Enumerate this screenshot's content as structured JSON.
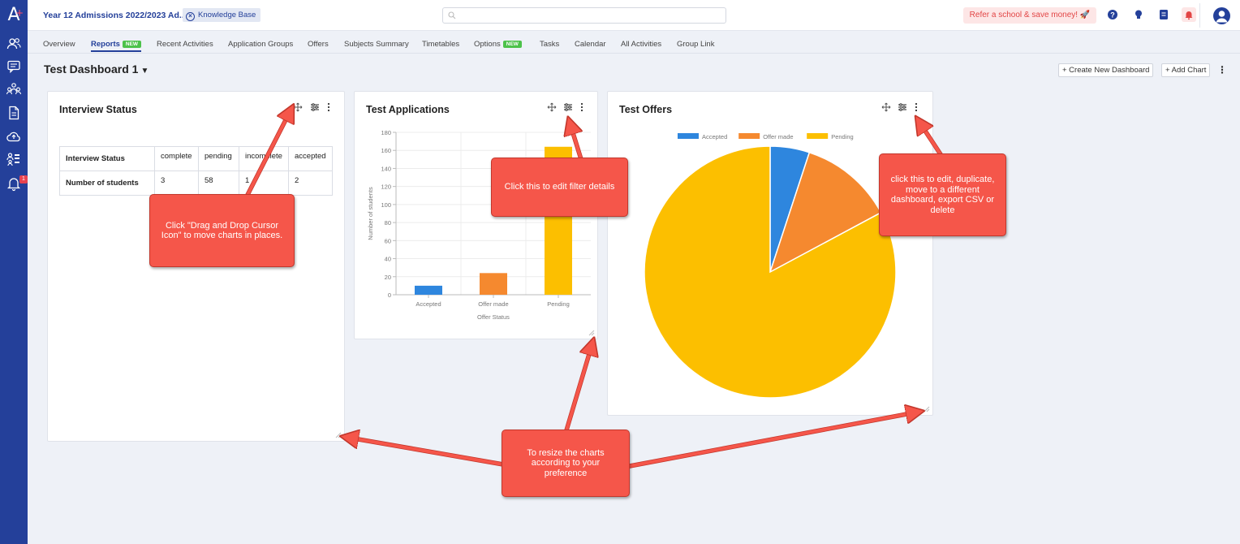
{
  "app": {
    "logo": "A",
    "year_selector": "Year 12 Admissions 2022/2023 Ad...",
    "knowledge_base": "Knowledge Base",
    "refer_label": "Refer a school & save money! 🚀",
    "notification_count": "1"
  },
  "tabs": [
    {
      "label": "Overview"
    },
    {
      "label": "Reports",
      "badge": "NEW"
    },
    {
      "label": "Recent Activities"
    },
    {
      "label": "Application Groups"
    },
    {
      "label": "Offers"
    },
    {
      "label": "Subjects Summary"
    },
    {
      "label": "Timetables"
    },
    {
      "label": "Options",
      "badge": "NEW"
    },
    {
      "label": "Tasks"
    },
    {
      "label": "Calendar"
    },
    {
      "label": "All Activities"
    },
    {
      "label": "Group Link"
    }
  ],
  "active_tab": "Reports",
  "dashboard": {
    "title": "Test Dashboard 1",
    "create_button": "+ Create New Dashboard",
    "add_chart_button": "+ Add Chart"
  },
  "interview_status": {
    "title": "Interview Status",
    "header_row": [
      "Interview Status",
      "complete",
      "pending",
      "incomplete",
      "accepted"
    ],
    "data_row": [
      "Number of students",
      "3",
      "58",
      "1",
      "2"
    ]
  },
  "chart_data": [
    {
      "type": "bar",
      "title": "Test Applications",
      "categories": [
        "Accepted",
        "Offer made",
        "Pending"
      ],
      "values": [
        10,
        24,
        164
      ],
      "colors": [
        "#2e86de",
        "#f5892f",
        "#fcbf00"
      ],
      "xlabel": "Offer Status",
      "ylabel": "Number of students",
      "ylim": [
        0,
        180
      ],
      "yticks": [
        0,
        20,
        40,
        60,
        80,
        100,
        120,
        140,
        160,
        180
      ],
      "grid": true
    },
    {
      "type": "pie",
      "title": "Test Offers",
      "labels": [
        "Accepted",
        "Offer made",
        "Pending"
      ],
      "values": [
        10,
        24,
        164
      ],
      "colors": [
        "#2e86de",
        "#f5892f",
        "#fcbf00"
      ],
      "legend": "top"
    }
  ],
  "callouts": {
    "drag": "Click \"Drag and Drop Cursor Icon\" to move charts in places.",
    "filter": "Click this to edit filter details",
    "menu": "click this to edit, duplicate, move  to a different dashboard, export CSV or delete",
    "resize": "To resize the charts according to your preference"
  },
  "icons": {
    "sidebar": [
      "people-icon",
      "chat-icon",
      "groups-icon",
      "document-icon",
      "cloud-upload-icon",
      "org-chart-icon",
      "bell-icon"
    ],
    "card_tools": [
      "move-icon",
      "filter-icon",
      "kebab-menu-icon"
    ]
  },
  "colors": {
    "sidebar": "#24409a",
    "accent": "#24409a",
    "callout": "#f5564a",
    "new_badge": "#4cc24a"
  }
}
